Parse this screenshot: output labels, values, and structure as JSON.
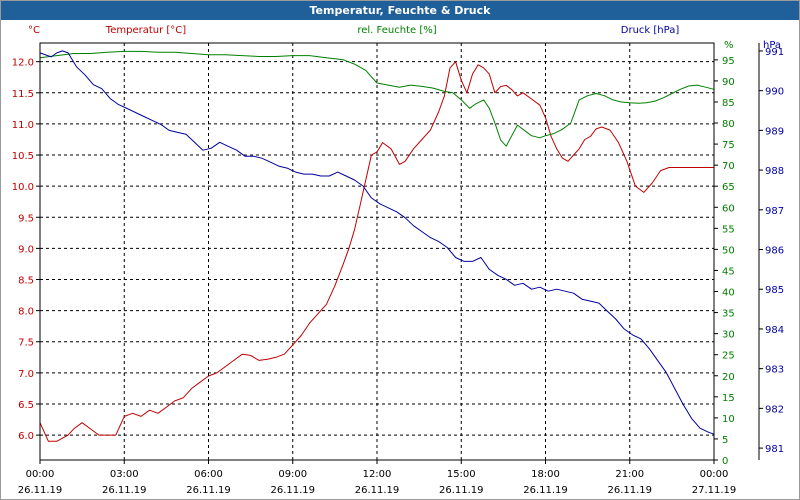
{
  "window": {
    "title": "Temperatur, Feuchte & Druck"
  },
  "chart_data": {
    "type": "line",
    "title": "Temperatur, Feuchte & Druck",
    "x_ticks": [
      {
        "time": "00:00",
        "date": "26.11.19"
      },
      {
        "time": "03:00",
        "date": "26.11.19"
      },
      {
        "time": "06:00",
        "date": "26.11.19"
      },
      {
        "time": "09:00",
        "date": "26.11.19"
      },
      {
        "time": "12:00",
        "date": "26.11.19"
      },
      {
        "time": "15:00",
        "date": "26.11.19"
      },
      {
        "time": "18:00",
        "date": "26.11.19"
      },
      {
        "time": "21:00",
        "date": "26.11.19"
      },
      {
        "time": "00:00",
        "date": "27.11.19"
      }
    ],
    "x_range_hours": [
      0,
      24
    ],
    "axes": {
      "temperature": {
        "label": "Temperatur [°C]",
        "unit": "°C",
        "color": "#c00000",
        "range": [
          5.6,
          12.3
        ],
        "ticks": [
          "12.0",
          "11.5",
          "11.0",
          "10.5",
          "10.0",
          "9.5",
          "9.0",
          "8.5",
          "8.0",
          "7.5",
          "7.0",
          "6.5",
          "6.0"
        ]
      },
      "humidity": {
        "label": "rel. Feuchte [%]",
        "unit": "%",
        "color": "#008000",
        "range": [
          0,
          99
        ],
        "ticks": [
          "95",
          "90",
          "85",
          "80",
          "75",
          "70",
          "65",
          "60",
          "55",
          "50",
          "45",
          "40",
          "35",
          "30",
          "25",
          "20",
          "15",
          "10",
          "5",
          "0"
        ]
      },
      "pressure": {
        "label": "Druck [hPa]",
        "unit": "hPa",
        "color": "#0000a0",
        "range": [
          980.7,
          991.2
        ],
        "ticks": [
          "991",
          "990",
          "989",
          "988",
          "987",
          "986",
          "985",
          "984",
          "983",
          "982",
          "981"
        ]
      }
    },
    "series": [
      {
        "name": "Temperatur",
        "axis": "temperature",
        "color": "#c00000",
        "x": [
          0,
          0.3,
          0.6,
          1,
          1.2,
          1.5,
          1.8,
          2.1,
          2.4,
          2.7,
          3,
          3.3,
          3.6,
          3.9,
          4.2,
          4.5,
          4.8,
          5.1,
          5.4,
          5.7,
          6,
          6.3,
          6.6,
          6.9,
          7.2,
          7.5,
          7.8,
          8.1,
          8.4,
          8.7,
          9,
          9.3,
          9.6,
          9.9,
          10.2,
          10.5,
          10.8,
          11,
          11.2,
          11.4,
          11.6,
          11.8,
          12,
          12.2,
          12.5,
          12.8,
          13,
          13.3,
          13.6,
          13.9,
          14.2,
          14.4,
          14.6,
          14.8,
          15,
          15.2,
          15.4,
          15.6,
          15.8,
          16,
          16.2,
          16.4,
          16.6,
          16.8,
          17,
          17.2,
          17.5,
          17.8,
          18,
          18.2,
          18.4,
          18.6,
          18.8,
          19,
          19.2,
          19.4,
          19.6,
          19.8,
          20,
          20.3,
          20.6,
          20.9,
          21.2,
          21.5,
          21.8,
          22.1,
          22.4,
          22.7,
          23,
          23.3,
          23.6,
          24
        ],
        "values": [
          6.2,
          5.9,
          5.9,
          6.0,
          6.1,
          6.2,
          6.1,
          6.0,
          6.0,
          6.0,
          6.3,
          6.35,
          6.3,
          6.4,
          6.35,
          6.45,
          6.55,
          6.6,
          6.75,
          6.85,
          6.95,
          7.0,
          7.1,
          7.2,
          7.3,
          7.28,
          7.2,
          7.22,
          7.25,
          7.3,
          7.45,
          7.6,
          7.8,
          7.95,
          8.1,
          8.4,
          8.75,
          9.0,
          9.3,
          9.7,
          10.1,
          10.5,
          10.55,
          10.7,
          10.6,
          10.35,
          10.4,
          10.6,
          10.75,
          10.9,
          11.2,
          11.45,
          11.9,
          12.0,
          11.7,
          11.5,
          11.8,
          11.95,
          11.9,
          11.8,
          11.5,
          11.6,
          11.62,
          11.55,
          11.45,
          11.5,
          11.4,
          11.3,
          11.1,
          10.8,
          10.6,
          10.45,
          10.4,
          10.5,
          10.6,
          10.75,
          10.8,
          10.92,
          10.95,
          10.9,
          10.7,
          10.4,
          10.0,
          9.9,
          10.05,
          10.25,
          10.3,
          10.3,
          10.3,
          10.3,
          10.3,
          10.3
        ]
      },
      {
        "name": "rel. Feuchte",
        "axis": "humidity",
        "color": "#008000",
        "x": [
          0,
          0.6,
          1.2,
          1.8,
          2.4,
          3,
          3.6,
          4.2,
          4.8,
          5.4,
          6,
          6.6,
          7.2,
          7.8,
          8.4,
          9,
          9.6,
          10.2,
          10.8,
          11.2,
          11.6,
          12,
          12.4,
          12.8,
          13.2,
          13.6,
          14,
          14.4,
          14.7,
          15,
          15.3,
          15.5,
          15.8,
          16,
          16.2,
          16.4,
          16.6,
          16.8,
          17,
          17.2,
          17.5,
          17.8,
          18,
          18.3,
          18.6,
          18.9,
          19.2,
          19.5,
          19.8,
          20.1,
          20.4,
          20.7,
          21,
          21.3,
          21.6,
          21.9,
          22.2,
          22.5,
          22.8,
          23.1,
          23.4,
          23.7,
          24
        ],
        "values": [
          95.5,
          96,
          96.5,
          96.5,
          96.8,
          97,
          97,
          96.8,
          96.8,
          96.5,
          96.2,
          96.2,
          96,
          95.8,
          95.8,
          96,
          96,
          95.5,
          95,
          94,
          92.5,
          89.5,
          89,
          88.5,
          89,
          88.7,
          88.3,
          87.5,
          87.2,
          85.5,
          83.5,
          84.5,
          85.5,
          83.5,
          80,
          76,
          74.5,
          77,
          79.5,
          78.5,
          77,
          76.5,
          77,
          77.5,
          78.5,
          80,
          85.5,
          86.5,
          87,
          86.5,
          85.5,
          85,
          84.8,
          84.7,
          84.8,
          85.2,
          86,
          87,
          88,
          88.8,
          89,
          88.5,
          88
        ]
      },
      {
        "name": "Druck",
        "axis": "pressure",
        "color": "#0000a0",
        "x": [
          0,
          0.2,
          0.4,
          0.6,
          0.8,
          1,
          1.3,
          1.6,
          1.9,
          2.2,
          2.5,
          2.8,
          3.1,
          3.4,
          3.7,
          4,
          4.3,
          4.6,
          4.9,
          5.2,
          5.5,
          5.8,
          6.1,
          6.4,
          6.7,
          7,
          7.3,
          7.6,
          7.9,
          8.2,
          8.5,
          8.8,
          9.1,
          9.4,
          9.7,
          10,
          10.3,
          10.6,
          10.9,
          11.2,
          11.5,
          11.8,
          12.1,
          12.4,
          12.7,
          13,
          13.3,
          13.6,
          13.9,
          14.2,
          14.5,
          14.8,
          15.1,
          15.4,
          15.7,
          16,
          16.3,
          16.6,
          16.9,
          17.2,
          17.5,
          17.8,
          18.1,
          18.4,
          18.7,
          19,
          19.3,
          19.6,
          19.9,
          20.2,
          20.5,
          20.8,
          21.1,
          21.4,
          21.7,
          22,
          22.3,
          22.6,
          22.9,
          23.2,
          23.5,
          23.8,
          24
        ],
        "values": [
          990.95,
          990.9,
          990.85,
          990.95,
          991.0,
          990.95,
          990.6,
          990.4,
          990.15,
          990.05,
          989.8,
          989.65,
          989.55,
          989.45,
          989.35,
          989.25,
          989.15,
          989.0,
          988.95,
          988.9,
          988.7,
          988.5,
          988.55,
          988.7,
          988.6,
          988.5,
          988.35,
          988.35,
          988.3,
          988.2,
          988.1,
          988.05,
          987.95,
          987.9,
          987.9,
          987.85,
          987.85,
          987.95,
          987.85,
          987.75,
          987.6,
          987.3,
          987.15,
          987.05,
          986.95,
          986.8,
          986.6,
          986.45,
          986.3,
          986.2,
          986.05,
          985.8,
          985.7,
          985.7,
          985.8,
          985.5,
          985.35,
          985.25,
          985.1,
          985.15,
          985.0,
          985.05,
          984.95,
          985.0,
          984.95,
          984.9,
          984.75,
          984.7,
          984.65,
          984.45,
          984.25,
          984.0,
          983.85,
          983.75,
          983.5,
          983.2,
          982.9,
          982.5,
          982.1,
          981.75,
          981.5,
          981.4,
          981.35
        ]
      }
    ]
  }
}
